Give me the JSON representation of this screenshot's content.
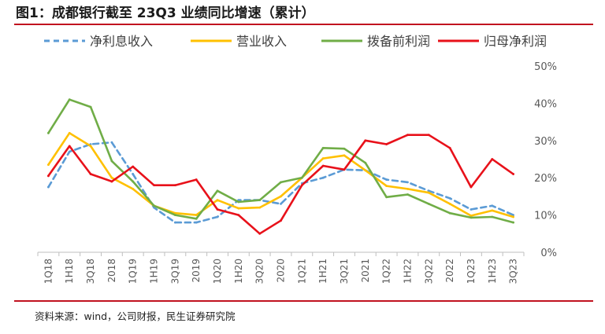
{
  "title": "图1：成都银行截至 23Q3 业绩同比增速（累计）",
  "source": "资料来源：wind，公司财报，民生证券研究院",
  "colors": {
    "brand_red": "#c1121f"
  },
  "chart_data": {
    "type": "line",
    "categories": [
      "1Q18",
      "1H18",
      "3Q18",
      "2018",
      "1Q19",
      "1H19",
      "3Q19",
      "2019",
      "1Q20",
      "1H20",
      "3Q20",
      "2020",
      "1Q21",
      "1H21",
      "3Q21",
      "2021",
      "1Q22",
      "1H22",
      "3Q22",
      "2022",
      "1Q23",
      "1H23",
      "3Q23"
    ],
    "ylim": [
      0,
      50
    ],
    "yticks": [
      "0%",
      "10%",
      "20%",
      "30%",
      "40%",
      "50%"
    ],
    "y_axis_side": "right",
    "grid": false,
    "legend": "top",
    "series": [
      {
        "name": "净利息收入",
        "color": "#5b9bd5",
        "dash": true,
        "values": [
          17.5,
          27,
          29,
          29.5,
          21,
          12,
          8,
          8,
          9.5,
          14,
          14,
          13,
          18.5,
          20,
          22.2,
          22,
          19.5,
          18.8,
          16.5,
          14.5,
          11.5,
          12.5,
          10
        ]
      },
      {
        "name": "营业收入",
        "color": "#ffc000",
        "dash": false,
        "values": [
          23.5,
          32,
          28.5,
          20,
          17,
          12.5,
          10.5,
          10,
          14,
          11.8,
          12,
          15,
          20,
          25.2,
          26,
          22,
          17.8,
          17,
          16,
          13,
          9.8,
          11.2,
          9.5
        ]
      },
      {
        "name": "拨备前利润",
        "color": "#70ad47",
        "dash": false,
        "values": [
          32,
          41,
          39,
          24.5,
          19,
          12.5,
          10,
          9,
          16.5,
          13.5,
          14,
          18.8,
          20,
          28,
          27.8,
          24,
          14.8,
          15.5,
          13,
          10.5,
          9.3,
          9.5,
          8
        ]
      },
      {
        "name": "归母净利润",
        "color": "#e8111a",
        "dash": false,
        "values": [
          20.5,
          28.5,
          21,
          19,
          23,
          18,
          18,
          19.5,
          11.5,
          10,
          5,
          8.5,
          18,
          23.2,
          22.2,
          30,
          29,
          31.5,
          31.5,
          28,
          17.5,
          25,
          21
        ]
      }
    ]
  }
}
